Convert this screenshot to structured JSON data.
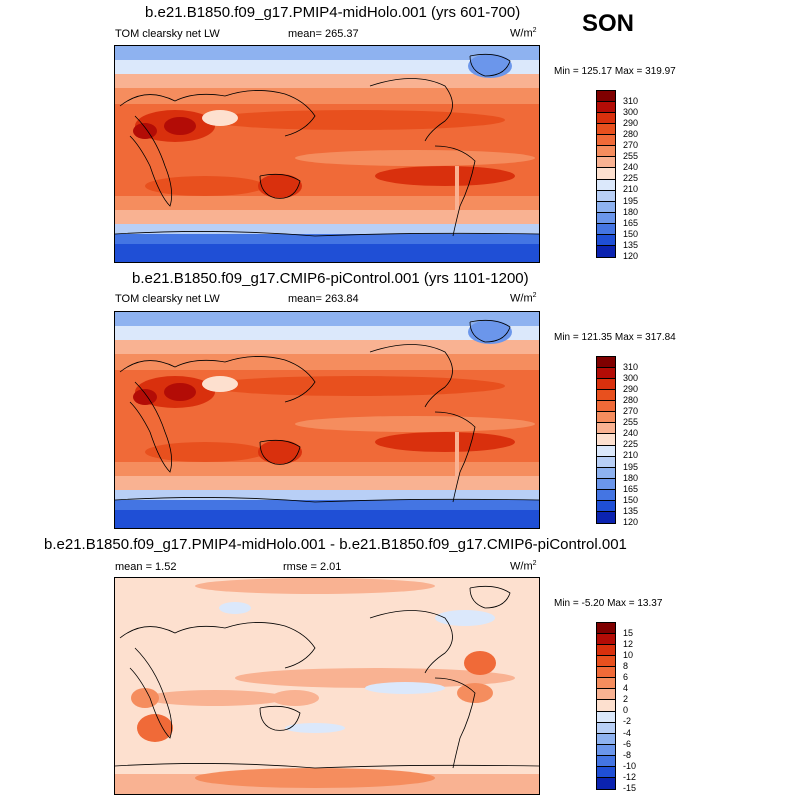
{
  "season": "SON",
  "panels": [
    {
      "title": "b.e21.B1850.f09_g17.PMIP4-midHolo.001 (yrs 601-700)",
      "left_label": "TOM clearsky net LW",
      "mid_label": "mean= 265.37",
      "units": "W/m",
      "units_exp": "2",
      "minmax": "Min = 125.17 Max = 319.97",
      "colorbar_labels": [
        "310",
        "300",
        "290",
        "280",
        "270",
        "255",
        "240",
        "225",
        "210",
        "195",
        "180",
        "165",
        "150",
        "135",
        "120"
      ],
      "colorbar_colors": [
        "#7f0000",
        "#b30c06",
        "#d9300d",
        "#e8501e",
        "#f06a38",
        "#f58d5e",
        "#f9b292",
        "#fde0cf",
        "#dbe8fb",
        "#b8cff6",
        "#8eb2f0",
        "#6b96eb",
        "#4475e3",
        "#1f4fd6",
        "#0b23b0",
        "#000080"
      ]
    },
    {
      "title": "b.e21.B1850.f09_g17.CMIP6-piControl.001 (yrs 1101-1200)",
      "left_label": "TOM clearsky net LW",
      "mid_label": "mean= 263.84",
      "units": "W/m",
      "units_exp": "2",
      "minmax": "Min = 121.35 Max = 317.84",
      "colorbar_labels": [
        "310",
        "300",
        "290",
        "280",
        "270",
        "255",
        "240",
        "225",
        "210",
        "195",
        "180",
        "165",
        "150",
        "135",
        "120"
      ],
      "colorbar_colors": [
        "#7f0000",
        "#b30c06",
        "#d9300d",
        "#e8501e",
        "#f06a38",
        "#f58d5e",
        "#f9b292",
        "#fde0cf",
        "#dbe8fb",
        "#b8cff6",
        "#8eb2f0",
        "#6b96eb",
        "#4475e3",
        "#1f4fd6",
        "#0b23b0",
        "#000080"
      ]
    },
    {
      "title": "b.e21.B1850.f09_g17.PMIP4-midHolo.001 - b.e21.B1850.f09_g17.CMIP6-piControl.001",
      "left_label": "mean =   1.52",
      "mid_label": "rmse =   2.01",
      "units": "W/m",
      "units_exp": "2",
      "minmax": "Min =  -5.20 Max =  13.37",
      "colorbar_labels": [
        "15",
        "12",
        "10",
        "8",
        "6",
        "4",
        "2",
        "0",
        "-2",
        "-4",
        "-6",
        "-8",
        "-10",
        "-12",
        "-15"
      ],
      "colorbar_colors": [
        "#7f0000",
        "#b30c06",
        "#d9300d",
        "#e8501e",
        "#f06a38",
        "#f58d5e",
        "#f9b292",
        "#fde0cf",
        "#dbe8fb",
        "#b8cff6",
        "#8eb2f0",
        "#6b96eb",
        "#4475e3",
        "#1f4fd6",
        "#0b23b0",
        "#000080"
      ]
    }
  ]
}
